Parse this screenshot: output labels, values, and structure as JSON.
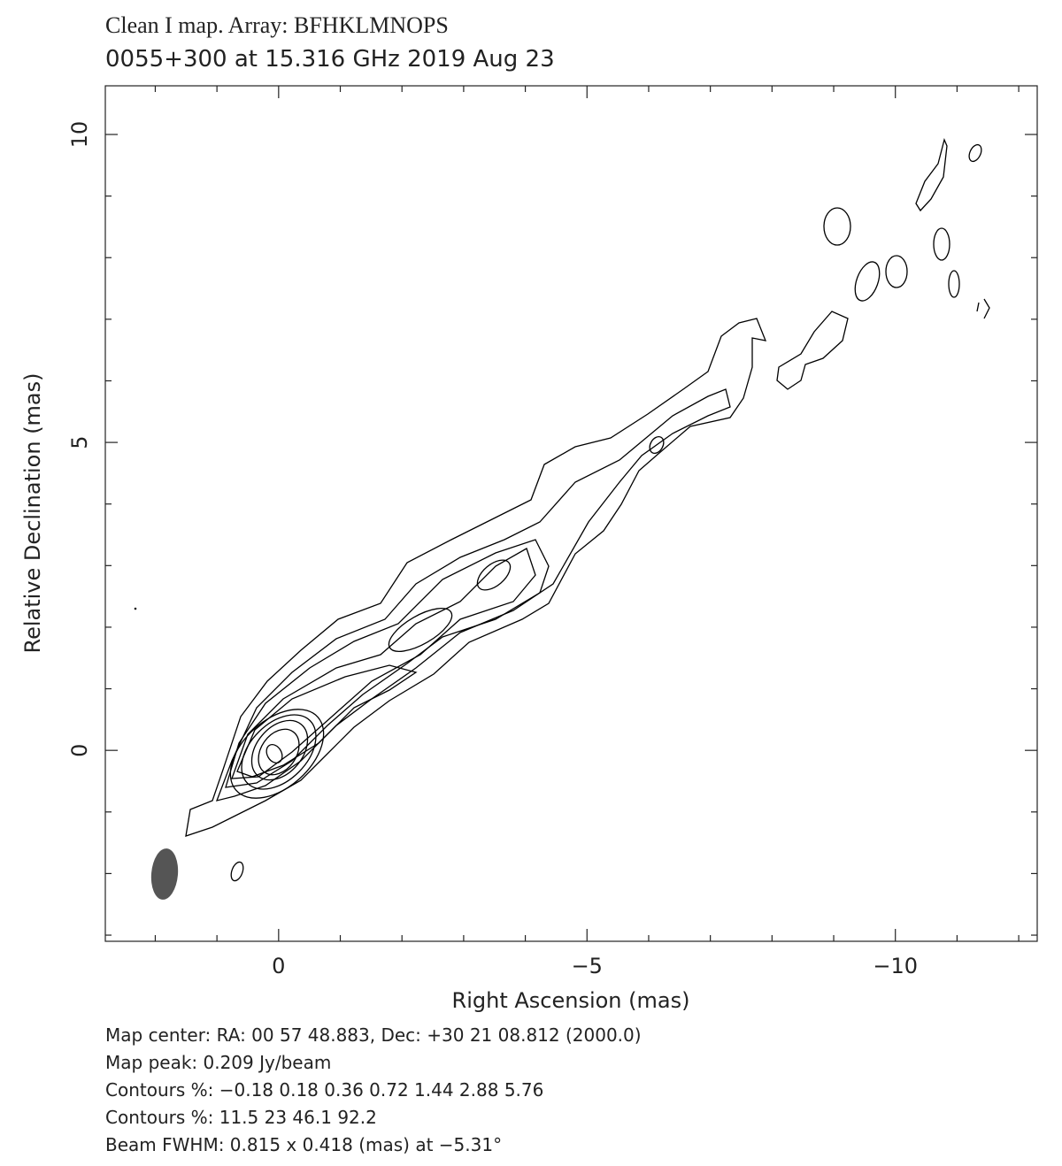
{
  "chart_data": {
    "type": "contour",
    "title": "Clean I map.  Array:  BFHKLMNOPS",
    "subtitle": "0055+300 at 15.316 GHz 2019 Aug 23",
    "x_label": "Right Ascension  (mas)",
    "y_label": "Relative Declination  (mas)",
    "xlim": [
      2.81,
      -12.3
    ],
    "ylim": [
      -3.1,
      10.79
    ],
    "xticks": [
      0,
      {
        "value": -5,
        "label": "−5"
      },
      {
        "value": -10,
        "label": "−10"
      }
    ],
    "yticks": [
      0,
      5,
      10
    ],
    "xminorticks": [
      2,
      1,
      -1,
      -2,
      -3,
      -4,
      -6,
      -7,
      -8,
      -9,
      -11,
      -12
    ],
    "yminorticks": [
      -3,
      -2,
      -1,
      1,
      2,
      3,
      4,
      6,
      7,
      8,
      9
    ],
    "color": "#000000",
    "beam_color": "#555555",
    "notes": [
      "Map center:  RA: 00 57 48.883,  Dec: +30 21 08.812 (2000.0)",
      "Map peak: 0.209 Jy/beam",
      "Contours %: −0.18 0.18 0.36 0.72 1.44 2.88 5.76",
      "Contours %: 11.5 23 46.1 92.2",
      "Beam FWHM: 0.815 x 0.418 (mas) at −5.31°"
    ]
  }
}
